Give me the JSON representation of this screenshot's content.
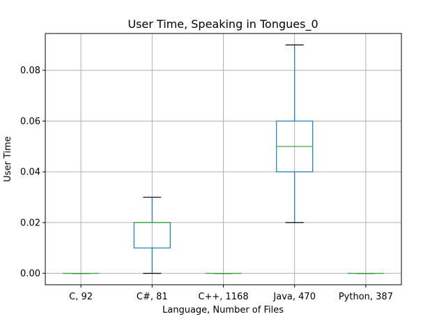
{
  "chart_data": {
    "type": "box",
    "title": "User Time, Speaking in Tongues_0",
    "xlabel": "Language, Number of Files",
    "ylabel": "User Time",
    "categories": [
      "C, 92",
      "C#, 81",
      "C++, 1168",
      "Java, 470",
      "Python, 387"
    ],
    "boxes": [
      {
        "whisker_low": 0.0,
        "q1": 0.0,
        "median": 0.0,
        "q3": 0.0,
        "whisker_high": 0.0
      },
      {
        "whisker_low": 0.0,
        "q1": 0.01,
        "median": 0.02,
        "q3": 0.02,
        "whisker_high": 0.03
      },
      {
        "whisker_low": 0.0,
        "q1": 0.0,
        "median": 0.0,
        "q3": 0.0,
        "whisker_high": 0.0
      },
      {
        "whisker_low": 0.02,
        "q1": 0.04,
        "median": 0.05,
        "q3": 0.06,
        "whisker_high": 0.09
      },
      {
        "whisker_low": 0.0,
        "q1": 0.0,
        "median": 0.0,
        "q3": 0.0,
        "whisker_high": 0.0
      }
    ],
    "yticks": [
      "0.00",
      "0.02",
      "0.04",
      "0.06",
      "0.08"
    ],
    "ylim": [
      -0.0045,
      0.0945
    ],
    "grid": true,
    "colors": {
      "box": "#1f77b4",
      "median": "#2ca02c",
      "grid": "#b0b0b0",
      "cap": "#000000"
    }
  }
}
